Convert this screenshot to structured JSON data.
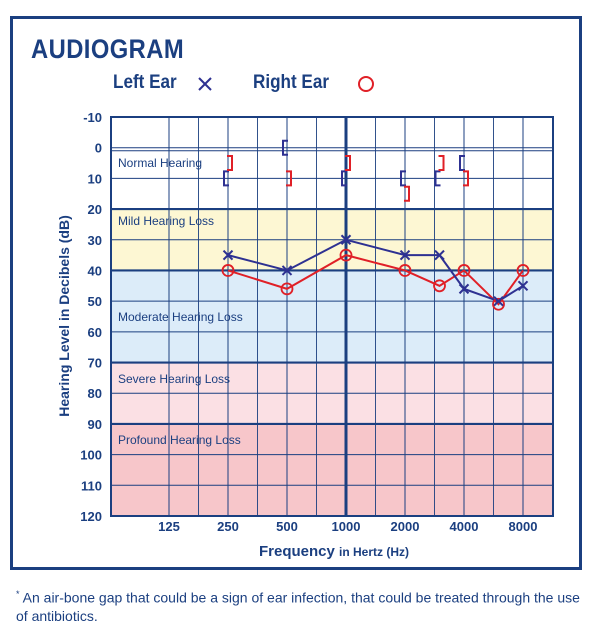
{
  "title": "AUDIOGRAM",
  "legend": {
    "left_label": "Left Ear",
    "left_icon": "x-mark-icon",
    "right_label": "Right Ear",
    "right_icon": "circle-icon"
  },
  "colors": {
    "frame": "#1b3f80",
    "left_ear": "#2e3192",
    "right_ear": "#e02027",
    "grid": "#1b3f80",
    "mild": "#fdf7d3",
    "moderate": "#dcecf9",
    "severe": "#fbe0e4",
    "profound": "#f7c6ca"
  },
  "chart_data": {
    "type": "line",
    "title": "AUDIOGRAM",
    "xlabel_main": "Frequency",
    "xlabel_unit": "in Hertz (Hz)",
    "ylabel": "Hearing Level in Decibels (dB)",
    "y_scale": "inverted",
    "ylim": [
      -10,
      120
    ],
    "y_ticks": [
      -10,
      0,
      10,
      20,
      30,
      40,
      50,
      60,
      70,
      80,
      90,
      100,
      110,
      120
    ],
    "x_ticks": [
      125,
      250,
      500,
      1000,
      2000,
      4000,
      8000
    ],
    "x_scale": "log",
    "grid": true,
    "bands": [
      {
        "label": "Normal Hearing",
        "from": -10,
        "to": 20,
        "color": "#ffffff"
      },
      {
        "label": "Mild Hearing Loss",
        "from": 20,
        "to": 40,
        "color": "#fdf7d3"
      },
      {
        "label": "Moderate Hearing Loss",
        "from": 40,
        "to": 70,
        "color": "#dcecf9"
      },
      {
        "label": "Severe Hearing Loss",
        "from": 70,
        "to": 90,
        "color": "#fbe0e4"
      },
      {
        "label": "Profound Hearing Loss",
        "from": 90,
        "to": 120,
        "color": "#f7c6ca"
      }
    ],
    "series": [
      {
        "name": "Left Ear",
        "marker": "x",
        "color": "#2e3192",
        "x": [
          250,
          500,
          1000,
          2000,
          3000,
          4000,
          6000,
          8000
        ],
        "y": [
          35,
          40,
          30,
          35,
          35,
          46,
          50,
          45
        ]
      },
      {
        "name": "Right Ear",
        "marker": "o",
        "color": "#e02027",
        "x": [
          250,
          500,
          1000,
          2000,
          3000,
          4000,
          6000,
          8000
        ],
        "y": [
          40,
          46,
          35,
          40,
          45,
          40,
          51,
          40
        ]
      }
    ],
    "bone_conduction": [
      {
        "ear": "left",
        "x": 250,
        "y": 10
      },
      {
        "ear": "right",
        "x": 250,
        "y": 5
      },
      {
        "ear": "left",
        "x": 500,
        "y": 0
      },
      {
        "ear": "right",
        "x": 500,
        "y": 10
      },
      {
        "ear": "left",
        "x": 1000,
        "y": 10
      },
      {
        "ear": "right",
        "x": 1000,
        "y": 5
      },
      {
        "ear": "left",
        "x": 2000,
        "y": 10
      },
      {
        "ear": "right",
        "x": 2000,
        "y": 15
      },
      {
        "ear": "left",
        "x": 3000,
        "y": 10
      },
      {
        "ear": "right",
        "x": 3000,
        "y": 5
      },
      {
        "ear": "left",
        "x": 4000,
        "y": 5
      },
      {
        "ear": "right",
        "x": 4000,
        "y": 10
      }
    ]
  },
  "footnote": {
    "mark": "*",
    "text": "An air-bone gap that could be a sign of ear infection, that could be treated through the use of antibiotics."
  }
}
